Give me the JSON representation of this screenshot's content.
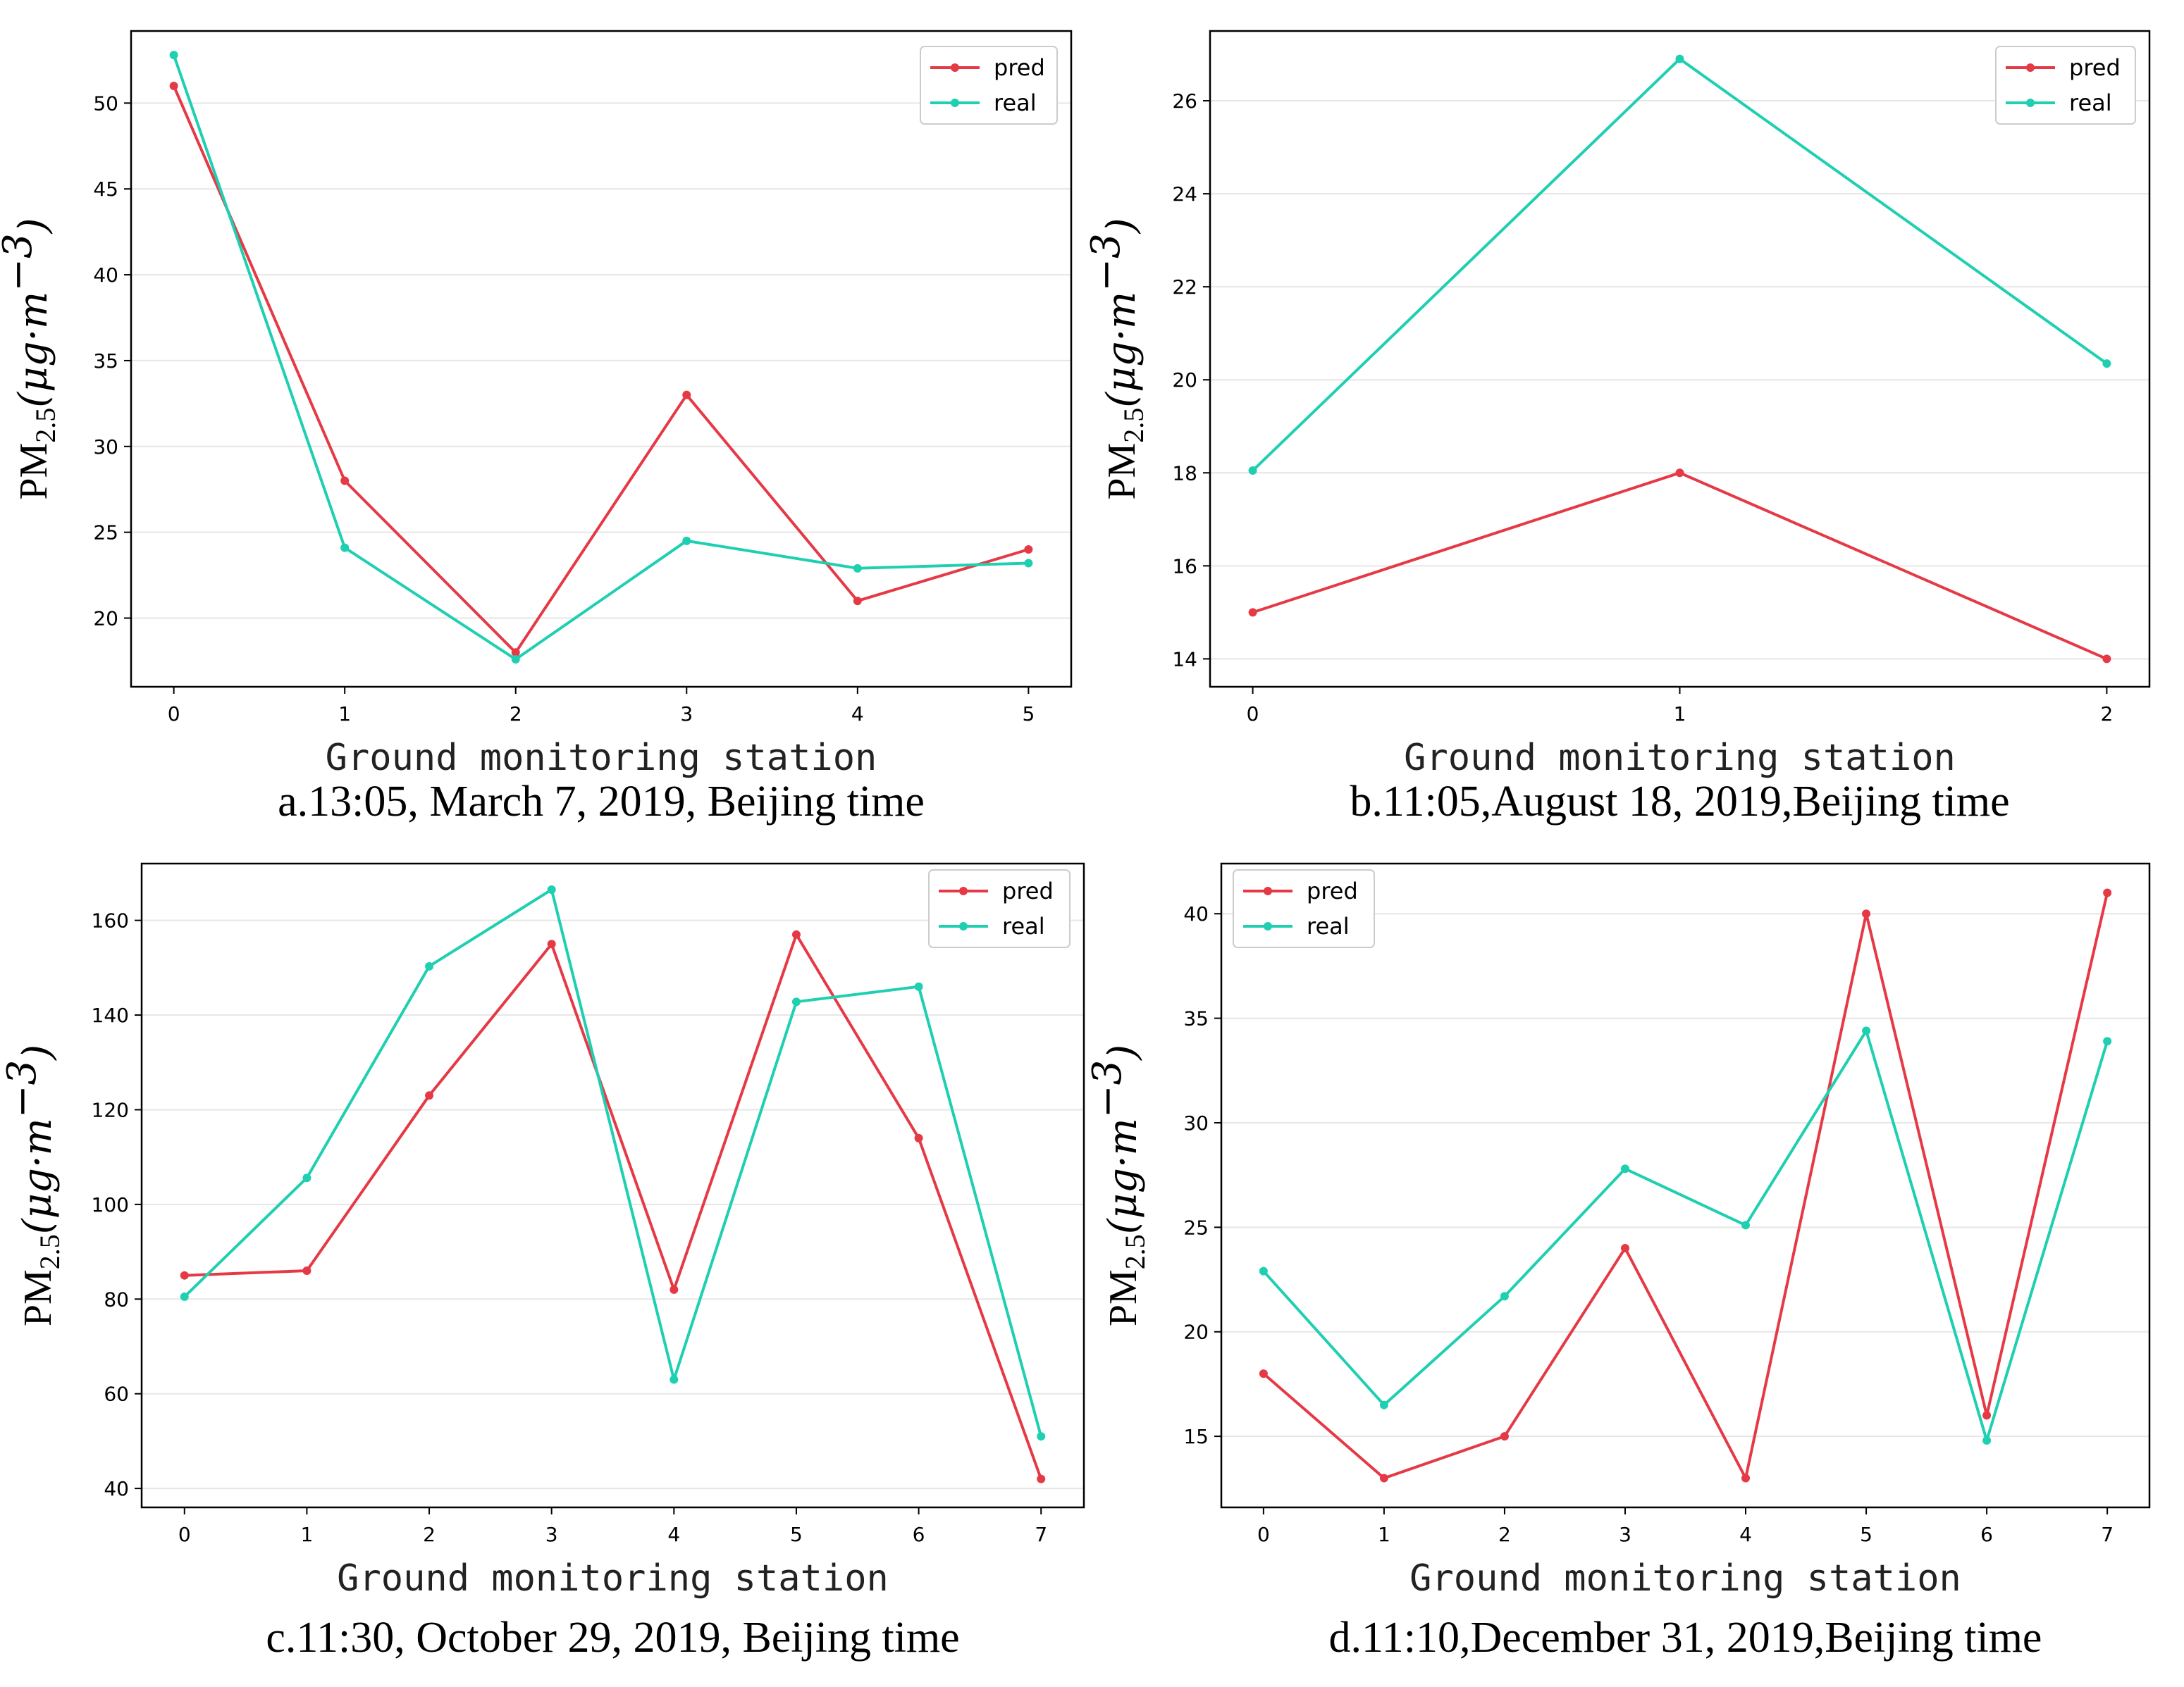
{
  "colors": {
    "pred": "#e63946",
    "real": "#1fcfb1",
    "grid": "#e6e6e6",
    "axis": "#000000"
  },
  "chart_data": [
    {
      "type": "line",
      "caption": "a.13:05, March 7, 2019, Beijing time",
      "xlabel": "Ground monitoring station",
      "ylabel": {
        "base": "PM",
        "sub": "2.5",
        "unit": "(μg·m",
        "sup": "−3",
        "close": ")"
      },
      "x": [
        0,
        1,
        2,
        3,
        4,
        5
      ],
      "xlim": [
        -0.25,
        5.25
      ],
      "ylim": [
        16.0,
        54.2
      ],
      "yticks": [
        20,
        25,
        30,
        35,
        40,
        45,
        50
      ],
      "legend_position": "top-right",
      "series": [
        {
          "name": "pred",
          "values": [
            51,
            28,
            18,
            33,
            21,
            24
          ]
        },
        {
          "name": "real",
          "values": [
            52.8,
            24.1,
            17.6,
            24.5,
            22.9,
            23.2
          ]
        }
      ]
    },
    {
      "type": "line",
      "caption": "b.11:05,August 18, 2019,Beijing time",
      "xlabel": "Ground monitoring station",
      "ylabel": {
        "base": "PM",
        "sub": "2.5",
        "unit": "(μg·m",
        "sup": "−3",
        "close": ")"
      },
      "x": [
        0,
        1,
        2
      ],
      "xlim": [
        -0.1,
        2.1
      ],
      "ylim": [
        13.4,
        27.5
      ],
      "yticks": [
        14,
        16,
        18,
        20,
        22,
        24,
        26
      ],
      "legend_position": "top-right",
      "series": [
        {
          "name": "pred",
          "values": [
            15,
            18,
            14
          ]
        },
        {
          "name": "real",
          "values": [
            18.05,
            26.9,
            20.35
          ]
        }
      ]
    },
    {
      "type": "line",
      "caption": "c.11:30, October 29, 2019, Beijing time",
      "xlabel": "Ground monitoring station",
      "ylabel": {
        "base": "PM",
        "sub": "2.5",
        "unit": "(μg·m",
        "sup": "−3",
        "close": ")"
      },
      "x": [
        0,
        1,
        2,
        3,
        4,
        5,
        6,
        7
      ],
      "xlim": [
        -0.35,
        7.35
      ],
      "ylim": [
        36.0,
        172.0
      ],
      "yticks": [
        40,
        60,
        80,
        100,
        120,
        140,
        160
      ],
      "legend_position": "top-right",
      "series": [
        {
          "name": "pred",
          "values": [
            85,
            86,
            123,
            155,
            82,
            157,
            114,
            42
          ]
        },
        {
          "name": "real",
          "values": [
            80.5,
            105.6,
            150.3,
            166.5,
            63,
            142.8,
            146,
            51
          ]
        }
      ]
    },
    {
      "type": "line",
      "caption": "d.11:10,December 31, 2019,Beijing time",
      "xlabel": "Ground monitoring station",
      "ylabel": {
        "base": "PM",
        "sub": "2.5",
        "unit": "(μg·m",
        "sup": "−3",
        "close": ")"
      },
      "x": [
        0,
        1,
        2,
        3,
        4,
        5,
        6,
        7
      ],
      "xlim": [
        -0.35,
        7.35
      ],
      "ylim": [
        11.6,
        42.4
      ],
      "yticks": [
        15,
        20,
        25,
        30,
        35,
        40
      ],
      "legend_position": "top-left",
      "series": [
        {
          "name": "pred",
          "values": [
            18,
            13,
            15,
            24,
            13,
            40,
            16,
            41
          ]
        },
        {
          "name": "real",
          "values": [
            22.9,
            16.5,
            21.7,
            27.8,
            25.1,
            34.4,
            14.8,
            33.9
          ]
        }
      ]
    }
  ]
}
